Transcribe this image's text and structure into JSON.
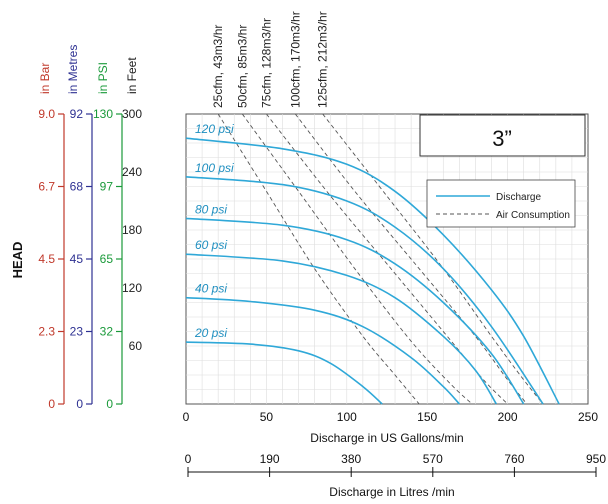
{
  "chart_data": {
    "type": "line",
    "title": "3”",
    "ylabel": "HEAD",
    "xlabel": "Discharge in US Gallons/min",
    "x2label": "Discharge in Litres /min",
    "xlim": [
      0,
      250
    ],
    "ylim": [
      0,
      300
    ],
    "x_ticks": [
      "50",
      "100",
      "150",
      "200",
      "250"
    ],
    "x2_ticks": [
      "0",
      "190",
      "380",
      "570",
      "760",
      "950"
    ],
    "y_axes": [
      {
        "label": "in Bar",
        "color": "#c0392b",
        "ticks": [
          "0",
          "2.3",
          "4.5",
          "6.7",
          "9.0"
        ]
      },
      {
        "label": "in Metres",
        "color": "#2e3192",
        "ticks": [
          "0",
          "23",
          "45",
          "68",
          "92"
        ]
      },
      {
        "label": "in PSI",
        "color": "#1a9a3a",
        "ticks": [
          "0",
          "32",
          "65",
          "97",
          "130"
        ]
      },
      {
        "label": "in Feet",
        "color": "#222222",
        "ticks": [
          "0",
          "60",
          "120",
          "180",
          "240",
          "300"
        ]
      }
    ],
    "legend": {
      "position": "top-right",
      "items": [
        {
          "name": "Discharge",
          "style": "solid",
          "color": "#2fa8d8"
        },
        {
          "name": "Air Consumption",
          "style": "dashed",
          "color": "#555555"
        }
      ]
    },
    "series": [
      {
        "name": "120 psi",
        "x": [
          0,
          60,
          100,
          130,
          160,
          190,
          210,
          232
        ],
        "y": [
          275,
          264,
          248,
          220,
          175,
          118,
          70,
          0
        ]
      },
      {
        "name": "100 psi",
        "x": [
          0,
          60,
          100,
          130,
          160,
          190,
          222
        ],
        "y": [
          235,
          227,
          210,
          183,
          140,
          80,
          0
        ]
      },
      {
        "name": "80 psi",
        "x": [
          0,
          60,
          100,
          130,
          160,
          190,
          210
        ],
        "y": [
          192,
          185,
          170,
          145,
          105,
          52,
          0
        ]
      },
      {
        "name": "60 psi",
        "x": [
          0,
          60,
          100,
          130,
          160,
          180,
          193
        ],
        "y": [
          155,
          148,
          133,
          110,
          70,
          35,
          0
        ]
      },
      {
        "name": "40 psi",
        "x": [
          0,
          40,
          80,
          110,
          140,
          160,
          170
        ],
        "y": [
          110,
          106,
          97,
          80,
          48,
          18,
          0
        ]
      },
      {
        "name": "20 psi",
        "x": [
          0,
          40,
          70,
          90,
          110,
          122
        ],
        "y": [
          64,
          62,
          55,
          42,
          18,
          0
        ]
      }
    ],
    "air_series": [
      {
        "name": "25cfm, 43m3/hr",
        "x": [
          20,
          50,
          80,
          110,
          130,
          145
        ],
        "y": [
          300,
          220,
          140,
          70,
          30,
          0
        ]
      },
      {
        "name": "50cfm, 85m3/hr",
        "x": [
          35,
          70,
          105,
          140,
          165,
          178
        ],
        "y": [
          300,
          220,
          140,
          65,
          20,
          0
        ]
      },
      {
        "name": "75cfm, 128m3/hr",
        "x": [
          50,
          90,
          130,
          165,
          185,
          200
        ],
        "y": [
          300,
          215,
          135,
          65,
          25,
          0
        ]
      },
      {
        "name": "100cfm, 170m3/hr",
        "x": [
          68,
          105,
          145,
          180,
          200,
          212
        ],
        "y": [
          300,
          220,
          140,
          70,
          25,
          0
        ]
      },
      {
        "name": "125cfm, 212m3/hr",
        "x": [
          85,
          125,
          160,
          190,
          210,
          222
        ],
        "y": [
          300,
          215,
          140,
          70,
          25,
          0
        ]
      }
    ],
    "grid": true
  }
}
